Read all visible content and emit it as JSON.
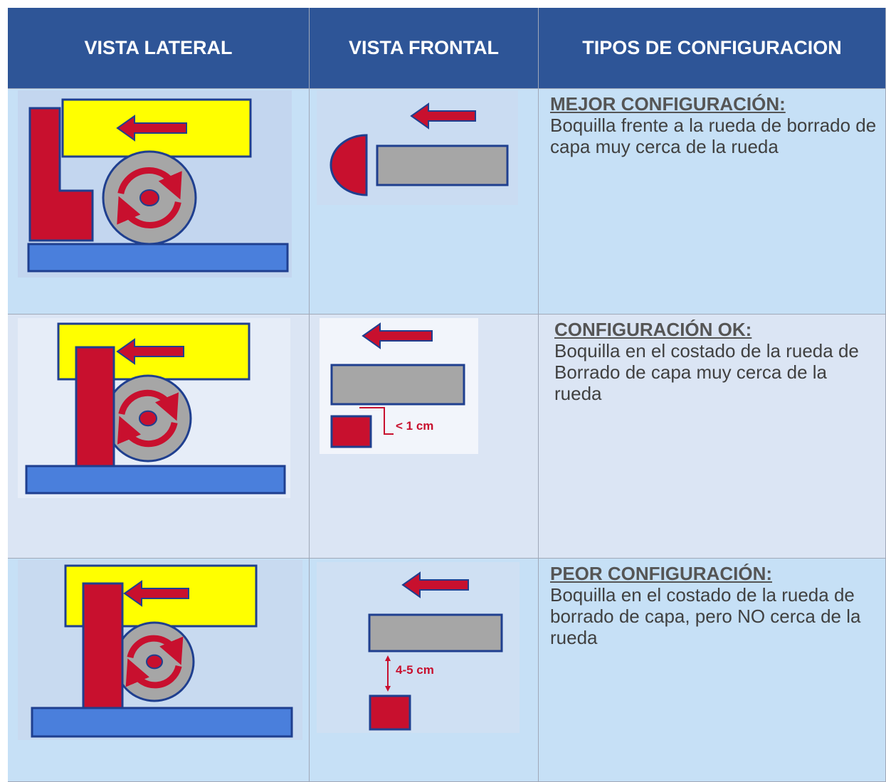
{
  "header": {
    "columns": [
      "VISTA LATERAL",
      "VISTA FRONTAL",
      "TIPOS DE CONFIGURACION"
    ]
  },
  "rows": [
    {
      "title": "MEJOR CONFIGURACIÓN:",
      "description": "Boquilla frente a la rueda de borrado de capa muy cerca de la rueda"
    },
    {
      "title": "CONFIGURACIÓN OK:",
      "description": "Boquilla en el costado de la rueda de Borrado de capa muy cerca de la rueda",
      "distance_label": "< 1 cm"
    },
    {
      "title": "PEOR CONFIGURACIÓN:",
      "description": "Boquilla en el costado de la rueda de borrado de capa, pero NO cerca de la rueda",
      "distance_label": "4-5 cm"
    }
  ]
}
